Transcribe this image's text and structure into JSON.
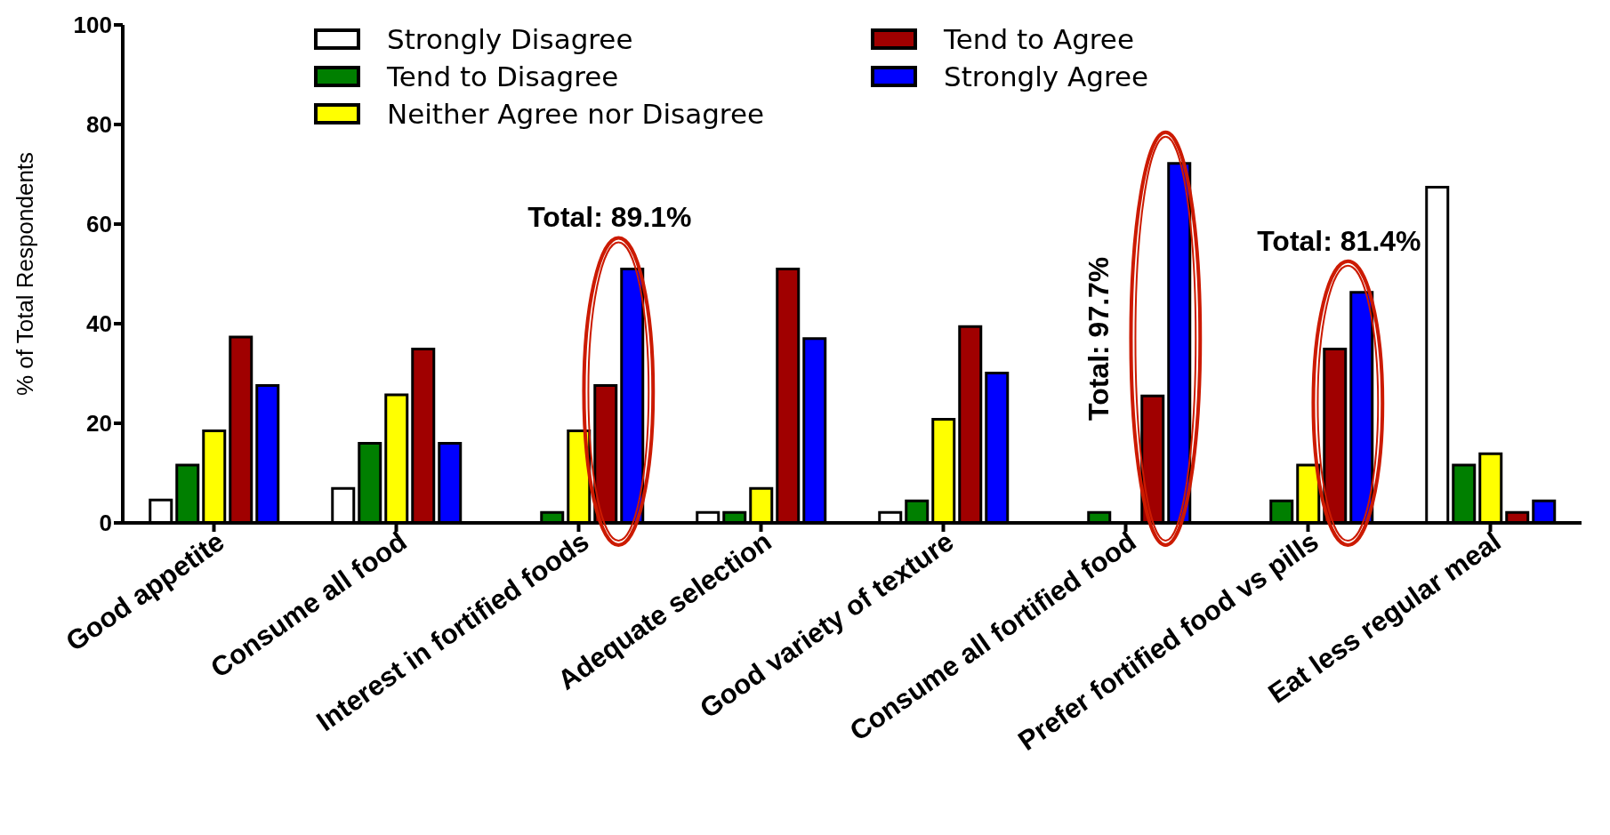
{
  "chart_data": {
    "type": "bar",
    "ylabel": "% of  Total Respondents",
    "categories": [
      "Good appetite",
      "Consume all food",
      "Interest in fortified foods",
      "Adequate selection",
      "Good variety of texture",
      "Consume all fortified food",
      "Prefer fortified food vs pills",
      "Eat less regular meal"
    ],
    "series": [
      {
        "name": "Strongly Disagree",
        "color": "#ffffff",
        "values": [
          4.6,
          6.9,
          0,
          2.1,
          2.1,
          0,
          0,
          67.4
        ]
      },
      {
        "name": "Tend to Disagree",
        "color": "#007f00",
        "values": [
          11.6,
          16,
          2.1,
          2.1,
          4.4,
          2.1,
          4.4,
          11.6
        ]
      },
      {
        "name": "Neither Agree nor Disagree",
        "color": "#ffff00",
        "values": [
          18.5,
          25.7,
          18.5,
          6.9,
          20.8,
          0,
          11.6,
          13.9
        ]
      },
      {
        "name": "Tend to Agree",
        "color": "#a00000",
        "values": [
          37.3,
          34.9,
          27.6,
          51,
          39.4,
          25.5,
          34.9,
          2.1
        ]
      },
      {
        "name": "Strongly Agree",
        "color": "#0000ff",
        "values": [
          27.6,
          16,
          51,
          37,
          30.1,
          72.2,
          46.3,
          4.4
        ]
      }
    ],
    "ylim": [
      0,
      100
    ],
    "yticks": [
      0,
      20,
      40,
      60,
      80,
      100
    ],
    "grid": false,
    "legend": "top",
    "annotations": [
      "Total: 89.1%",
      "Total: 97.7%",
      "Total: 81.4%"
    ]
  }
}
